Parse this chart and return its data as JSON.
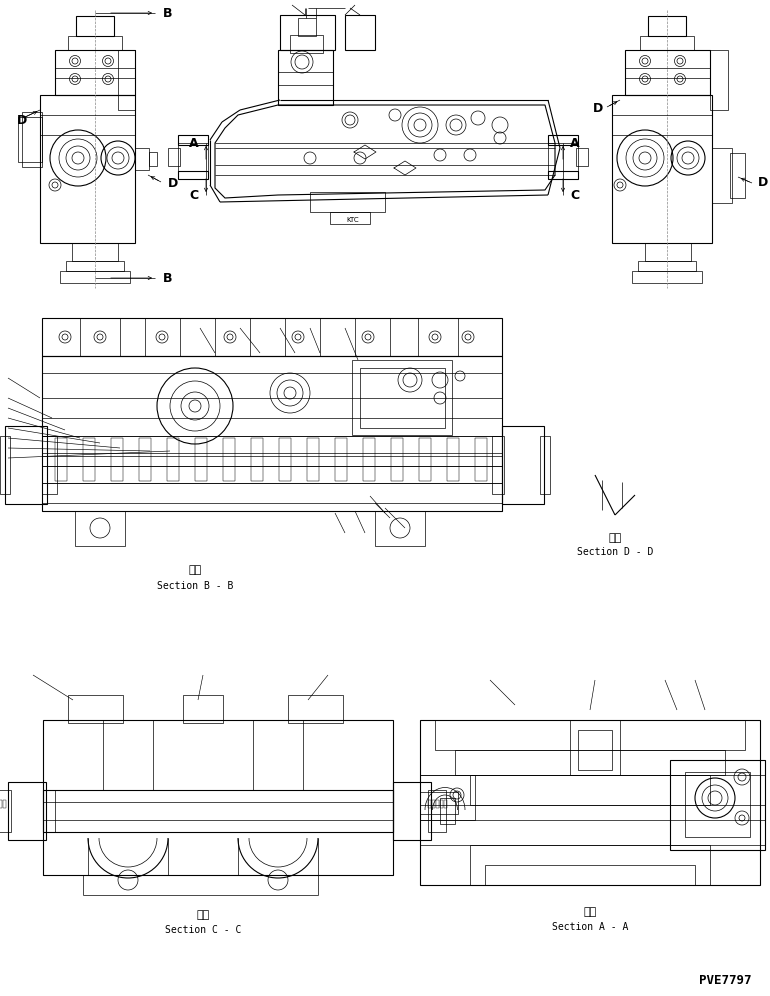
{
  "bg_color": "#ffffff",
  "line_color": "#000000",
  "fig_width": 7.7,
  "fig_height": 9.96,
  "dpi": 100,
  "labels": {
    "section_bb_kanji": "断面",
    "section_bb": "Section B - B",
    "section_cc_kanji": "断面",
    "section_cc": "Section C - C",
    "section_aa_kanji": "断面",
    "section_aa": "Section A - A",
    "section_dd_kanji": "断面",
    "section_dd": "Section D - D",
    "part_number": "PVE7797",
    "B": "B",
    "A": "A",
    "C": "C",
    "D": "D",
    "KTC": "KTC"
  }
}
